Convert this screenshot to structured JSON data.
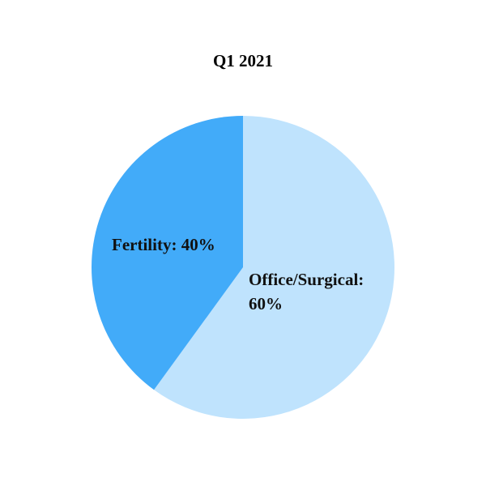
{
  "chart_data": {
    "type": "pie",
    "title": "Q1 2021",
    "categories": [
      "Office/Surgical",
      "Fertility"
    ],
    "values": [
      60,
      40
    ],
    "value_labels": [
      "Office/Surgical: 60%",
      "Fertility: 40%"
    ],
    "colors": [
      "#bfe3fd",
      "#42abf9"
    ]
  }
}
